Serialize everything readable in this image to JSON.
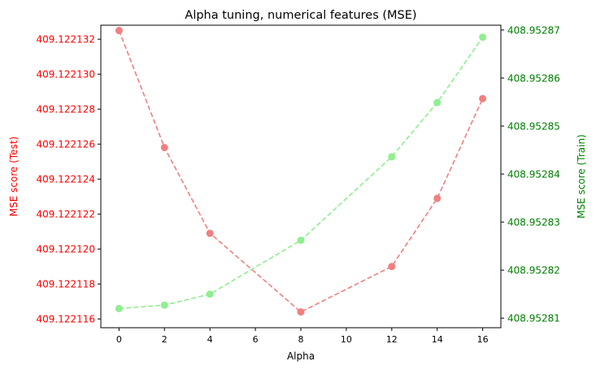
{
  "chart_data": {
    "type": "line",
    "title": "Alpha tuning, numerical features (MSE)",
    "xlabel": "Alpha",
    "ylabel_left": "MSE score (Test)",
    "ylabel_right": "MSE score (Train)",
    "x": [
      0,
      2,
      4,
      8,
      12,
      14,
      16
    ],
    "x_ticks": [
      "0",
      "2",
      "4",
      "6",
      "8",
      "10",
      "12",
      "14",
      "16"
    ],
    "x_range": [
      -0.8,
      16.8
    ],
    "left_axis": {
      "range": [
        409.1221155,
        409.1221328
      ],
      "ticks": [
        "409.122116",
        "409.122118",
        "409.122120",
        "409.122122",
        "409.122124",
        "409.122126",
        "409.122128",
        "409.122130",
        "409.122132"
      ],
      "color": "#ff0000"
    },
    "right_axis": {
      "range": [
        408.952808,
        408.952871
      ],
      "ticks": [
        "408.95281",
        "408.95282",
        "408.95283",
        "408.95284",
        "408.95285",
        "408.95286",
        "408.95287"
      ],
      "color": "#008000"
    },
    "series": [
      {
        "axis": "left",
        "color": "#f08080",
        "values": [
          409.1221325,
          409.1221258,
          409.1221209,
          409.1221164,
          409.122119,
          409.1221229,
          409.1221286
        ]
      },
      {
        "axis": "right",
        "color": "#90ee90",
        "values": [
          408.952812,
          408.9528127,
          408.952815,
          408.9528262,
          408.9528436,
          408.9528549,
          408.9528685
        ]
      }
    ],
    "grid": false,
    "legend": "none"
  }
}
